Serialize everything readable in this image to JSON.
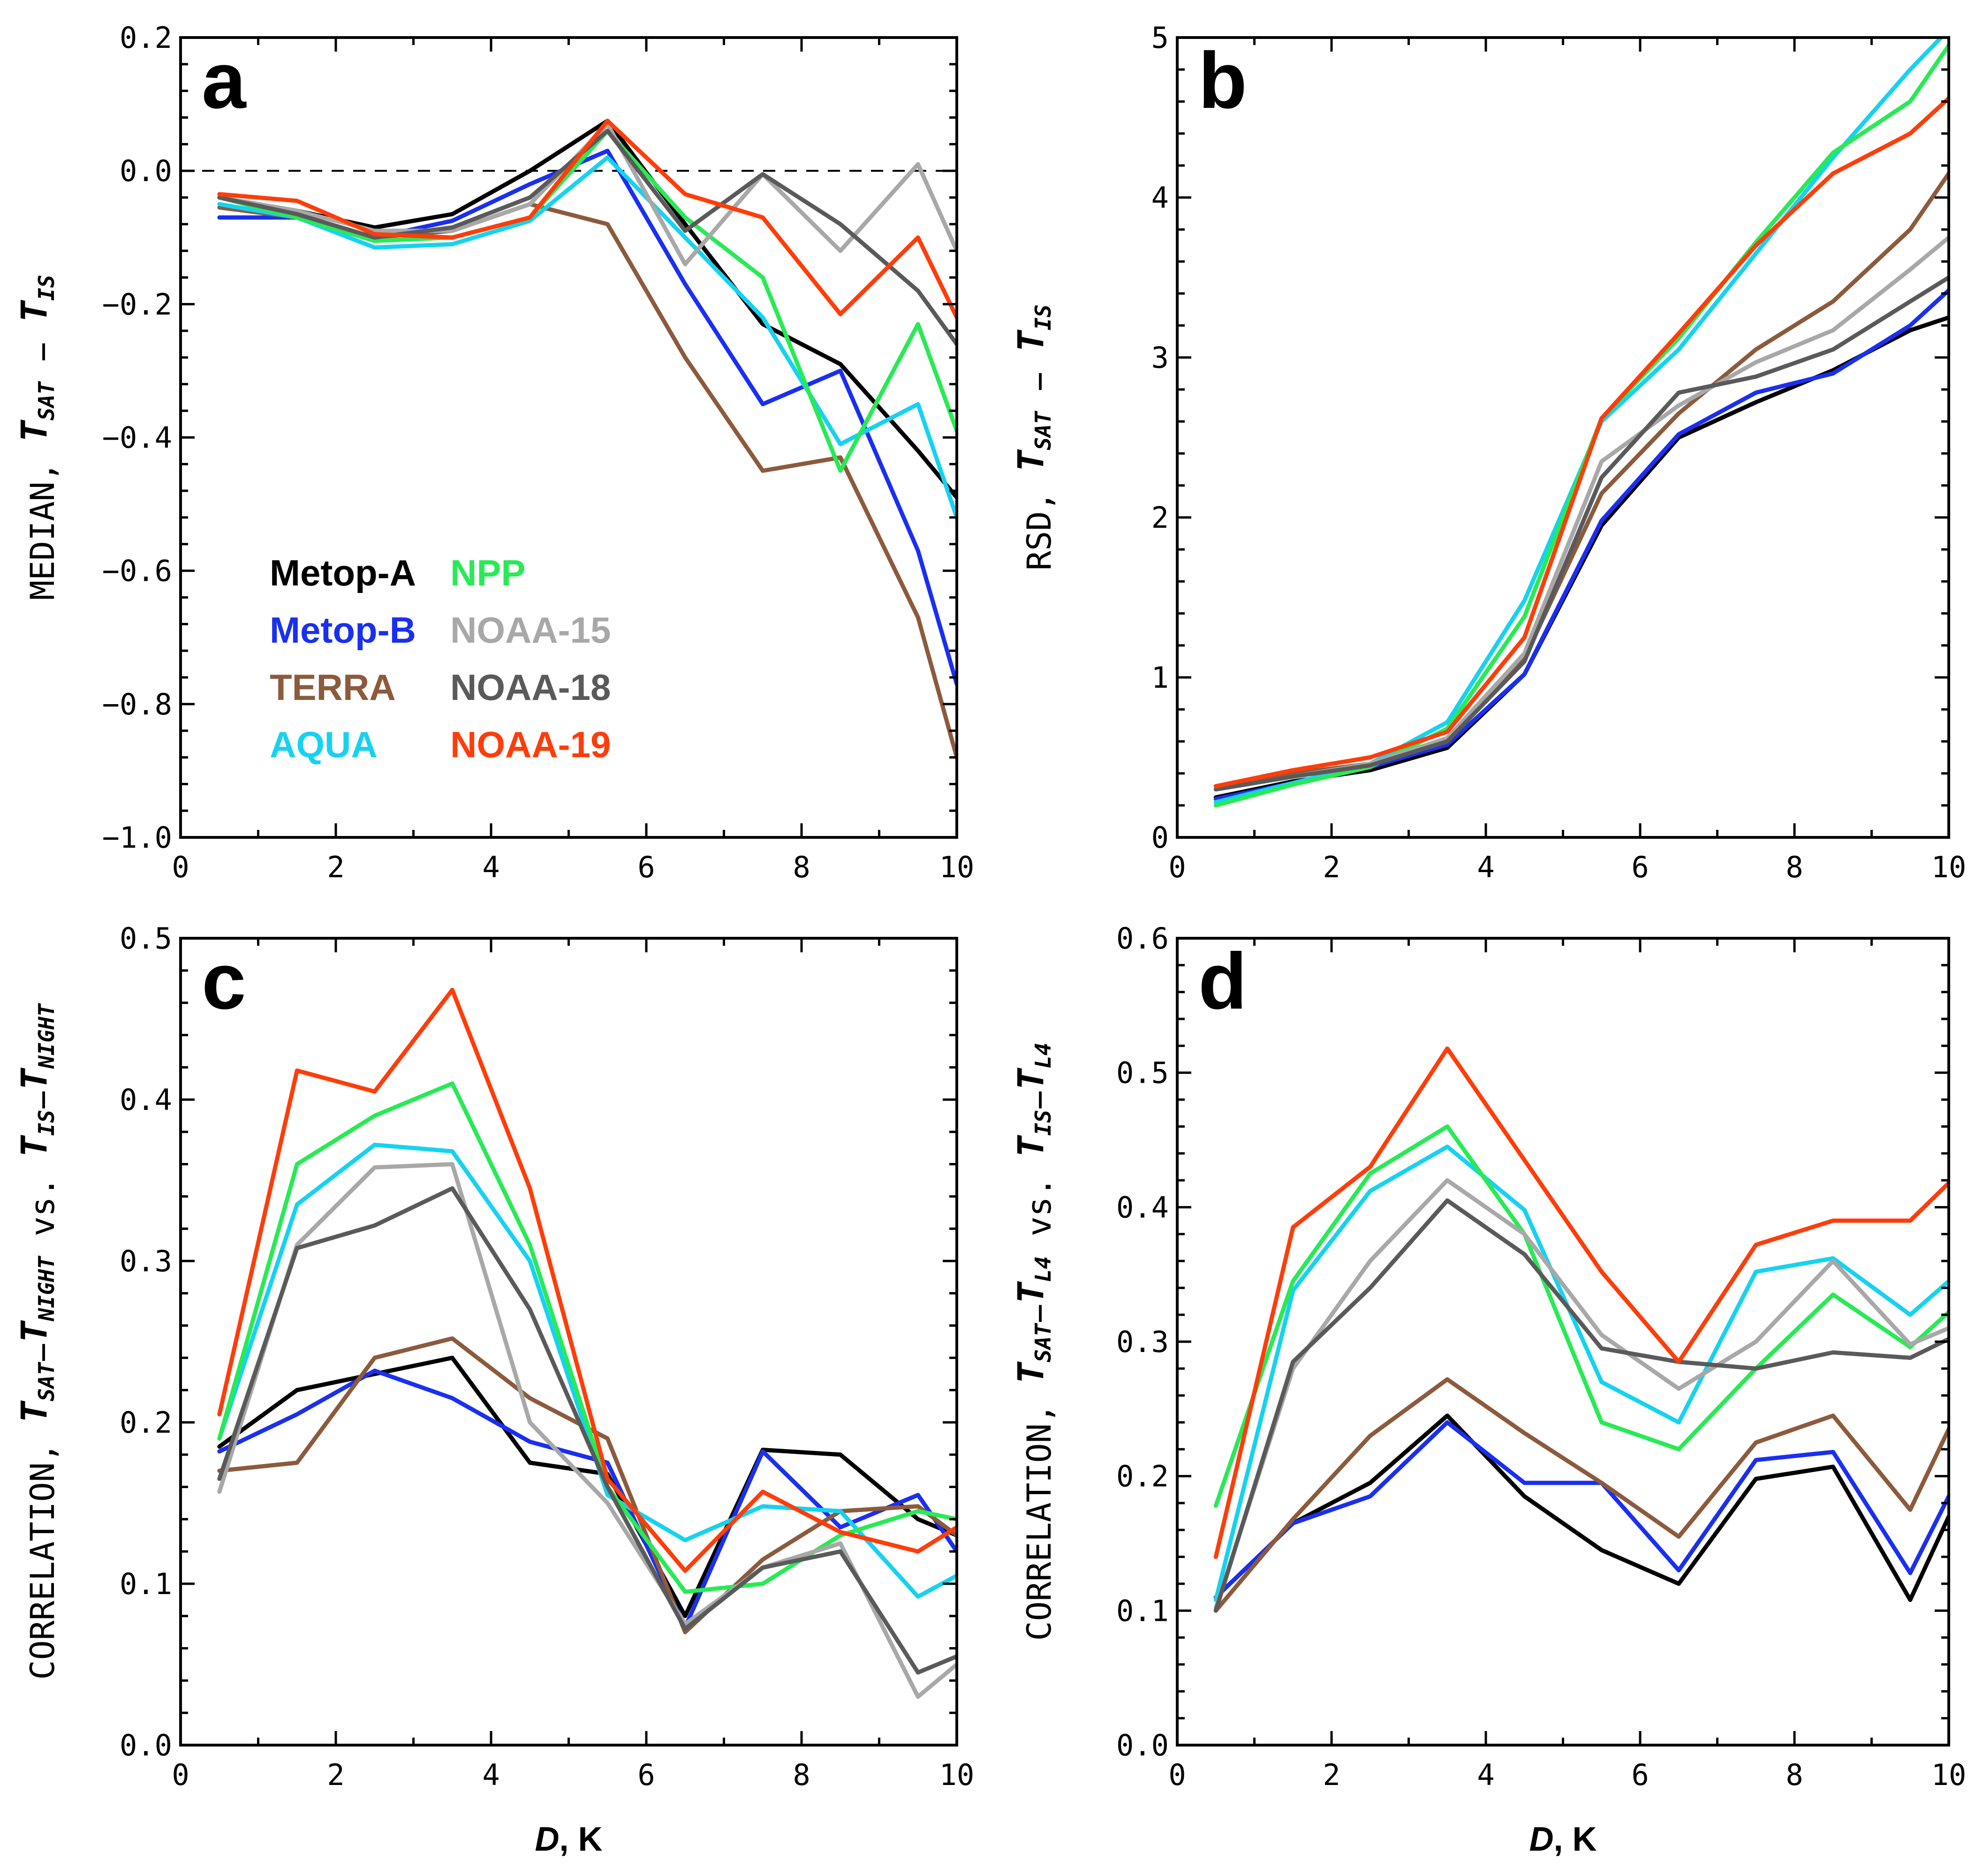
{
  "colors": {
    "Metop-A": "#000000",
    "Metop-B": "#1a2ff0",
    "TERRA": "#8c5a3c",
    "AQUA": "#16d2f0",
    "NPP": "#28ea55",
    "NOAA-15": "#a8a8a8",
    "NOAA-18": "#5a5a5a",
    "NOAA-19": "#ff3d0a"
  },
  "legend": [
    "Metop-A",
    "NPP",
    "Metop-B",
    "NOAA-15",
    "TERRA",
    "NOAA-18",
    "AQUA",
    "NOAA-19"
  ],
  "chart_data": [
    {
      "type": "line",
      "panel": "a",
      "ylabel": "MEDIAN, T_SAT − T_IS",
      "xlabel": "",
      "xlim": [
        0,
        10
      ],
      "ylim": [
        -1.0,
        0.2
      ],
      "xticks": [
        0,
        2,
        4,
        6,
        8,
        10
      ],
      "yticks": [
        -1.0,
        -0.8,
        -0.6,
        -0.4,
        -0.2,
        0.0,
        0.2
      ],
      "ytick_labels": [
        "−1.0",
        "−0.8",
        "−0.6",
        "−0.4",
        "−0.2",
        "0.0",
        "0.2"
      ],
      "zero_line": true,
      "x": [
        0.5,
        1.5,
        2.5,
        3.5,
        4.5,
        5.5,
        6.5,
        7.5,
        8.5,
        9.5,
        10
      ],
      "series": [
        {
          "name": "Metop-A",
          "values": [
            -0.04,
            -0.06,
            -0.085,
            -0.065,
            0.0,
            0.075,
            -0.08,
            -0.23,
            -0.29,
            -0.42,
            -0.49
          ]
        },
        {
          "name": "Metop-B",
          "values": [
            -0.07,
            -0.07,
            -0.1,
            -0.075,
            -0.02,
            0.03,
            -0.17,
            -0.35,
            -0.3,
            -0.57,
            -0.77
          ]
        },
        {
          "name": "TERRA",
          "values": [
            -0.055,
            -0.07,
            -0.1,
            -0.09,
            -0.05,
            -0.08,
            -0.28,
            -0.45,
            -0.43,
            -0.67,
            -0.88
          ]
        },
        {
          "name": "AQUA",
          "values": [
            -0.05,
            -0.07,
            -0.115,
            -0.11,
            -0.075,
            0.02,
            -0.1,
            -0.22,
            -0.41,
            -0.35,
            -0.52
          ]
        },
        {
          "name": "NPP",
          "values": [
            -0.04,
            -0.07,
            -0.105,
            -0.1,
            -0.07,
            0.06,
            -0.07,
            -0.16,
            -0.45,
            -0.23,
            -0.39
          ]
        },
        {
          "name": "NOAA-15",
          "values": [
            -0.04,
            -0.06,
            -0.09,
            -0.09,
            -0.05,
            0.07,
            -0.14,
            -0.005,
            -0.12,
            0.01,
            -0.12
          ]
        },
        {
          "name": "NOAA-18",
          "values": [
            -0.04,
            -0.065,
            -0.1,
            -0.085,
            -0.04,
            0.06,
            -0.09,
            -0.005,
            -0.08,
            -0.18,
            -0.26
          ]
        },
        {
          "name": "NOAA-19",
          "values": [
            -0.035,
            -0.045,
            -0.095,
            -0.1,
            -0.07,
            0.075,
            -0.035,
            -0.07,
            -0.215,
            -0.1,
            -0.22
          ]
        }
      ]
    },
    {
      "type": "line",
      "panel": "b",
      "ylabel": "RSD, T_SAT − T_IS",
      "xlabel": "",
      "xlim": [
        0,
        10
      ],
      "ylim": [
        0,
        5
      ],
      "xticks": [
        0,
        2,
        4,
        6,
        8,
        10
      ],
      "yticks": [
        0,
        1,
        2,
        3,
        4,
        5
      ],
      "ytick_labels": [
        "0",
        "1",
        "2",
        "3",
        "4",
        "5"
      ],
      "x": [
        0.5,
        1.5,
        2.5,
        3.5,
        4.5,
        5.5,
        6.5,
        7.5,
        8.5,
        9.5,
        10
      ],
      "series": [
        {
          "name": "Metop-A",
          "values": [
            0.25,
            0.35,
            0.42,
            0.56,
            1.02,
            1.95,
            2.5,
            2.72,
            2.92,
            3.17,
            3.25
          ]
        },
        {
          "name": "Metop-B",
          "values": [
            0.24,
            0.34,
            0.44,
            0.58,
            1.02,
            1.98,
            2.52,
            2.78,
            2.9,
            3.2,
            3.42
          ]
        },
        {
          "name": "TERRA",
          "values": [
            0.32,
            0.4,
            0.46,
            0.62,
            1.12,
            2.15,
            2.65,
            3.05,
            3.35,
            3.8,
            4.15
          ]
        },
        {
          "name": "AQUA",
          "values": [
            0.22,
            0.34,
            0.46,
            0.72,
            1.48,
            2.6,
            3.05,
            3.65,
            4.25,
            4.8,
            5.05
          ]
        },
        {
          "name": "NPP",
          "values": [
            0.2,
            0.33,
            0.44,
            0.68,
            1.38,
            2.62,
            3.12,
            3.72,
            4.28,
            4.6,
            4.95
          ]
        },
        {
          "name": "NOAA-15",
          "values": [
            0.3,
            0.38,
            0.46,
            0.62,
            1.15,
            2.35,
            2.7,
            2.97,
            3.17,
            3.55,
            3.75
          ]
        },
        {
          "name": "NOAA-18",
          "values": [
            0.3,
            0.38,
            0.45,
            0.6,
            1.1,
            2.25,
            2.78,
            2.88,
            3.05,
            3.35,
            3.5
          ]
        },
        {
          "name": "NOAA-19",
          "values": [
            0.32,
            0.42,
            0.5,
            0.66,
            1.25,
            2.62,
            3.15,
            3.7,
            4.15,
            4.4,
            4.62
          ]
        }
      ]
    },
    {
      "type": "line",
      "panel": "c",
      "ylabel": "CORRELATION, T_SAT−T_NIGHT vs. T_IS−T_NIGHT",
      "xlabel": "D, K",
      "xlim": [
        0,
        10
      ],
      "ylim": [
        0.0,
        0.5
      ],
      "xticks": [
        0,
        2,
        4,
        6,
        8,
        10
      ],
      "yticks": [
        0.0,
        0.1,
        0.2,
        0.3,
        0.4,
        0.5
      ],
      "ytick_labels": [
        "0.0",
        "0.1",
        "0.2",
        "0.3",
        "0.4",
        "0.5"
      ],
      "x": [
        0.5,
        1.5,
        2.5,
        3.5,
        4.5,
        5.5,
        6.5,
        7.5,
        8.5,
        9.5,
        10
      ],
      "series": [
        {
          "name": "Metop-A",
          "values": [
            0.185,
            0.22,
            0.23,
            0.24,
            0.175,
            0.168,
            0.08,
            0.183,
            0.18,
            0.14,
            0.13
          ]
        },
        {
          "name": "Metop-B",
          "values": [
            0.182,
            0.205,
            0.232,
            0.215,
            0.188,
            0.175,
            0.073,
            0.182,
            0.135,
            0.155,
            0.12
          ]
        },
        {
          "name": "TERRA",
          "values": [
            0.17,
            0.175,
            0.24,
            0.252,
            0.215,
            0.19,
            0.07,
            0.115,
            0.145,
            0.148,
            0.13
          ]
        },
        {
          "name": "AQUA",
          "values": [
            0.19,
            0.335,
            0.372,
            0.368,
            0.3,
            0.155,
            0.127,
            0.148,
            0.145,
            0.092,
            0.105
          ]
        },
        {
          "name": "NPP",
          "values": [
            0.19,
            0.36,
            0.39,
            0.41,
            0.31,
            0.16,
            0.095,
            0.1,
            0.13,
            0.145,
            0.14
          ]
        },
        {
          "name": "NOAA-15",
          "values": [
            0.157,
            0.31,
            0.358,
            0.36,
            0.2,
            0.15,
            0.075,
            0.11,
            0.125,
            0.03,
            0.05
          ]
        },
        {
          "name": "NOAA-18",
          "values": [
            0.165,
            0.308,
            0.322,
            0.345,
            0.27,
            0.16,
            0.072,
            0.11,
            0.12,
            0.045,
            0.055
          ]
        },
        {
          "name": "NOAA-19",
          "values": [
            0.205,
            0.418,
            0.405,
            0.468,
            0.345,
            0.165,
            0.108,
            0.157,
            0.132,
            0.12,
            0.135
          ]
        }
      ]
    },
    {
      "type": "line",
      "panel": "d",
      "ylabel": "CORRELATION, T_SAT−T_L4 vs. T_IS−T_L4",
      "xlabel": "D, K",
      "xlim": [
        0,
        10
      ],
      "ylim": [
        0.0,
        0.6
      ],
      "xticks": [
        0,
        2,
        4,
        6,
        8,
        10
      ],
      "yticks": [
        0.0,
        0.1,
        0.2,
        0.3,
        0.4,
        0.5,
        0.6
      ],
      "ytick_labels": [
        "0.0",
        "0.1",
        "0.2",
        "0.3",
        "0.4",
        "0.5",
        "0.6"
      ],
      "x": [
        0.5,
        1.5,
        2.5,
        3.5,
        4.5,
        5.5,
        6.5,
        7.5,
        8.5,
        9.5,
        10
      ],
      "series": [
        {
          "name": "Metop-A",
          "values": [
            0.11,
            0.165,
            0.195,
            0.245,
            0.185,
            0.145,
            0.12,
            0.198,
            0.207,
            0.108,
            0.17
          ]
        },
        {
          "name": "Metop-B",
          "values": [
            0.11,
            0.165,
            0.185,
            0.24,
            0.195,
            0.195,
            0.13,
            0.212,
            0.218,
            0.128,
            0.185
          ]
        },
        {
          "name": "TERRA",
          "values": [
            0.1,
            0.168,
            0.23,
            0.272,
            0.232,
            0.195,
            0.155,
            0.225,
            0.245,
            0.175,
            0.235
          ]
        },
        {
          "name": "AQUA",
          "values": [
            0.108,
            0.338,
            0.412,
            0.445,
            0.398,
            0.27,
            0.24,
            0.352,
            0.362,
            0.32,
            0.345
          ]
        },
        {
          "name": "NPP",
          "values": [
            0.178,
            0.345,
            0.425,
            0.46,
            0.38,
            0.24,
            0.22,
            0.28,
            0.335,
            0.296,
            0.322
          ]
        },
        {
          "name": "NOAA-15",
          "values": [
            0.102,
            0.28,
            0.36,
            0.42,
            0.38,
            0.305,
            0.265,
            0.3,
            0.36,
            0.298,
            0.31
          ]
        },
        {
          "name": "NOAA-18",
          "values": [
            0.1,
            0.285,
            0.34,
            0.405,
            0.365,
            0.295,
            0.285,
            0.28,
            0.292,
            0.288,
            0.302
          ]
        },
        {
          "name": "NOAA-19",
          "values": [
            0.14,
            0.385,
            0.43,
            0.518,
            0.435,
            0.352,
            0.285,
            0.372,
            0.39,
            0.39,
            0.418
          ]
        }
      ]
    }
  ]
}
